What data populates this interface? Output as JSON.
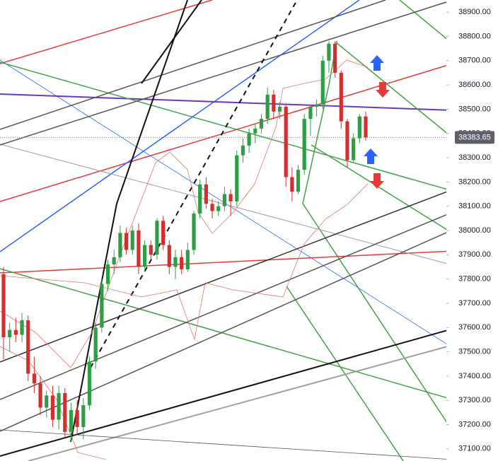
{
  "chart_data": {
    "type": "candlestick",
    "open": [
      37820,
      37560,
      37590,
      37570,
      37630,
      37410,
      37370,
      37270,
      37320,
      37220,
      37330,
      37170,
      37260,
      37190,
      37280,
      37460,
      37600,
      37780,
      37860,
      37890,
      37990,
      37920,
      38000,
      37850,
      37940,
      37900,
      38040,
      37940,
      37850,
      37890,
      37840,
      37920,
      38070,
      38190,
      38110,
      38080,
      38100,
      38150,
      38120,
      38310,
      38350,
      38400,
      38420,
      38460,
      38560,
      38490,
      38510,
      38220,
      38160,
      38250,
      38460,
      38510,
      38520,
      38700,
      38770,
      38650,
      38450,
      38290,
      38380,
      38470
    ],
    "high": [
      37850,
      37620,
      37640,
      37660,
      37650,
      37480,
      37400,
      37340,
      37360,
      37360,
      37350,
      37290,
      37300,
      37310,
      37480,
      37620,
      37800,
      37880,
      37920,
      38020,
      38010,
      38020,
      38030,
      37960,
      37960,
      38050,
      38060,
      37960,
      37920,
      37920,
      37950,
      38080,
      38210,
      38220,
      38130,
      38120,
      38180,
      38170,
      38330,
      38380,
      38420,
      38440,
      38480,
      38590,
      38580,
      38530,
      38520,
      38260,
      38270,
      38480,
      38520,
      38540,
      38720,
      38780,
      38780,
      38660,
      38460,
      38400,
      38480,
      38490
    ],
    "low": [
      37470,
      37500,
      37540,
      37540,
      37380,
      37330,
      37240,
      37230,
      37190,
      37180,
      37150,
      37130,
      37160,
      37140,
      37260,
      37430,
      37580,
      37750,
      37820,
      37870,
      37900,
      37900,
      37820,
      37830,
      37880,
      37880,
      37920,
      37820,
      37800,
      37820,
      37830,
      37900,
      38050,
      38090,
      38050,
      38060,
      38080,
      38060,
      38100,
      38280,
      38320,
      38360,
      38400,
      38440,
      38460,
      38460,
      38180,
      38120,
      38150,
      38230,
      38390,
      38470,
      38500,
      38650,
      38630,
      38420,
      38260,
      38280,
      38360,
      38370
    ],
    "close": [
      37560,
      37590,
      37570,
      37630,
      37410,
      37370,
      37270,
      37320,
      37220,
      37330,
      37170,
      37260,
      37190,
      37280,
      37460,
      37600,
      37780,
      37860,
      37890,
      37990,
      37920,
      38000,
      37850,
      37940,
      37900,
      38040,
      37940,
      37850,
      37890,
      37840,
      37920,
      38070,
      38190,
      38110,
      38080,
      38100,
      38150,
      38120,
      38310,
      38350,
      38400,
      38420,
      38460,
      38560,
      38490,
      38510,
      38220,
      38160,
      38250,
      38460,
      38510,
      38520,
      38700,
      38770,
      38650,
      38450,
      38290,
      38380,
      38470,
      38383.65
    ],
    "up_color": "#2e9e45",
    "down_color": "#d32f2f",
    "ylim": [
      37050,
      38950
    ],
    "yticks": [
      {
        "value": 37100,
        "label": "37100.00"
      },
      {
        "value": 37200,
        "label": "37200.00"
      },
      {
        "value": 37300,
        "label": "37300.00"
      },
      {
        "value": 37400,
        "label": "37400.00"
      },
      {
        "value": 37500,
        "label": "37500.00"
      },
      {
        "value": 37600,
        "label": "37600.00"
      },
      {
        "value": 37700,
        "label": "37700.00"
      },
      {
        "value": 37800,
        "label": "37800.00"
      },
      {
        "value": 37900,
        "label": "37900.00"
      },
      {
        "value": 38000,
        "label": "38000.00"
      },
      {
        "value": 38100,
        "label": "38100.00"
      },
      {
        "value": 38200,
        "label": "38200.00"
      },
      {
        "value": 38300,
        "label": "38300.00"
      },
      {
        "value": 38400,
        "label": "38400.00"
      },
      {
        "value": 38500,
        "label": "38500.00"
      },
      {
        "value": 38600,
        "label": "38600.00"
      },
      {
        "value": 38700,
        "label": "38700.00"
      },
      {
        "value": 38800,
        "label": "38800.00"
      },
      {
        "value": 38900,
        "label": "38900.00"
      }
    ],
    "last_price": 38383.65
  }
}
